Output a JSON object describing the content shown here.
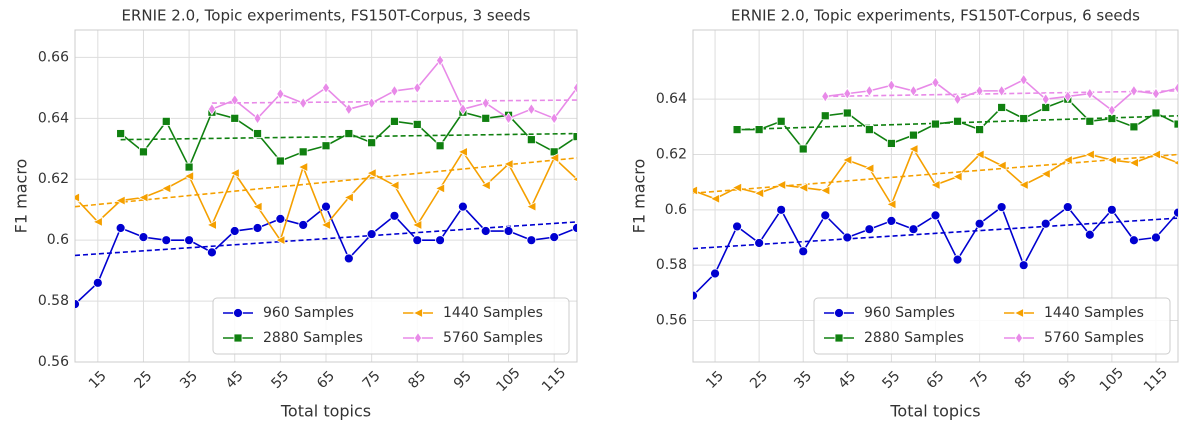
{
  "chart_data": [
    {
      "type": "line",
      "title": "ERNIE 2.0, Topic experiments, FS150T-Corpus, 3 seeds",
      "x_label": "Total topics",
      "y_label": "F1 macro",
      "xlim": [
        10,
        120
      ],
      "xticks": [
        15,
        25,
        35,
        45,
        55,
        65,
        75,
        85,
        95,
        105,
        115
      ],
      "ylim": [
        0.56,
        0.669
      ],
      "yticks": [
        0.56,
        0.58,
        0.6,
        0.62,
        0.64,
        0.66
      ],
      "grid": true,
      "legend": "lower right",
      "series": [
        {
          "name": "960 Samples",
          "color": "#0000d0",
          "marker": "circle",
          "x": [
            10,
            15,
            20,
            25,
            30,
            35,
            40,
            45,
            50,
            55,
            60,
            65,
            70,
            75,
            80,
            85,
            90,
            95,
            100,
            105,
            110,
            115,
            120
          ],
          "values": [
            0.579,
            0.586,
            0.604,
            0.601,
            0.6,
            0.6,
            0.596,
            0.603,
            0.604,
            0.607,
            0.605,
            0.611,
            0.594,
            0.602,
            0.608,
            0.6,
            0.6,
            0.611,
            0.603,
            0.603,
            0.6,
            0.601,
            0.604
          ],
          "trend": [
            0.595,
            0.606
          ]
        },
        {
          "name": "2880 Samples",
          "color": "#108010",
          "marker": "square",
          "x": [
            20,
            25,
            30,
            35,
            40,
            45,
            50,
            55,
            60,
            65,
            70,
            75,
            80,
            85,
            90,
            95,
            100,
            105,
            110,
            115,
            120
          ],
          "values": [
            0.635,
            0.629,
            0.639,
            0.624,
            0.642,
            0.64,
            0.635,
            0.626,
            0.629,
            0.631,
            0.635,
            0.632,
            0.639,
            0.638,
            0.631,
            0.642,
            0.64,
            0.641,
            0.633,
            0.629,
            0.634
          ],
          "trend": [
            0.633,
            0.635
          ]
        },
        {
          "name": "1440 Samples",
          "color": "#f5a000",
          "marker": "triangle-left",
          "x": [
            10,
            15,
            20,
            25,
            30,
            35,
            40,
            45,
            50,
            55,
            60,
            65,
            70,
            75,
            80,
            85,
            90,
            95,
            100,
            105,
            110,
            115,
            120
          ],
          "values": [
            0.614,
            0.606,
            0.613,
            0.614,
            0.617,
            0.621,
            0.605,
            0.622,
            0.611,
            0.6,
            0.624,
            0.605,
            0.614,
            0.622,
            0.618,
            0.605,
            0.617,
            0.629,
            0.618,
            0.625,
            0.611,
            0.627,
            0.62
          ],
          "trend": [
            0.611,
            0.627
          ]
        },
        {
          "name": "5760 Samples",
          "color": "#e88ae8",
          "marker": "diamond",
          "x": [
            40,
            45,
            50,
            55,
            60,
            65,
            70,
            75,
            80,
            85,
            90,
            95,
            100,
            105,
            110,
            115,
            120
          ],
          "values": [
            0.643,
            0.646,
            0.64,
            0.648,
            0.645,
            0.65,
            0.643,
            0.645,
            0.649,
            0.65,
            0.659,
            0.643,
            0.645,
            0.64,
            0.643,
            0.64,
            0.65
          ],
          "trend": [
            0.645,
            0.646
          ]
        }
      ]
    },
    {
      "type": "line",
      "title": "ERNIE 2.0, Topic experiments, FS150T-Corpus, 6 seeds",
      "x_label": "Total topics",
      "y_label": "F1 macro",
      "xlim": [
        10,
        120
      ],
      "xticks": [
        15,
        25,
        35,
        45,
        55,
        65,
        75,
        85,
        95,
        105,
        115
      ],
      "ylim": [
        0.545,
        0.665
      ],
      "yticks": [
        0.56,
        0.58,
        0.6,
        0.62,
        0.64
      ],
      "grid": true,
      "legend": "lower right",
      "series": [
        {
          "name": "960 Samples",
          "color": "#0000d0",
          "marker": "circle",
          "x": [
            10,
            15,
            20,
            25,
            30,
            35,
            40,
            45,
            50,
            55,
            60,
            65,
            70,
            75,
            80,
            85,
            90,
            95,
            100,
            105,
            110,
            115,
            120
          ],
          "values": [
            0.569,
            0.577,
            0.594,
            0.588,
            0.6,
            0.585,
            0.598,
            0.59,
            0.593,
            0.596,
            0.593,
            0.598,
            0.582,
            0.595,
            0.601,
            0.58,
            0.595,
            0.601,
            0.591,
            0.6,
            0.589,
            0.59,
            0.599
          ],
          "trend": [
            0.586,
            0.597
          ]
        },
        {
          "name": "2880 Samples",
          "color": "#108010",
          "marker": "square",
          "x": [
            20,
            25,
            30,
            35,
            40,
            45,
            50,
            55,
            60,
            65,
            70,
            75,
            80,
            85,
            90,
            95,
            100,
            105,
            110,
            115,
            120
          ],
          "values": [
            0.629,
            0.629,
            0.632,
            0.622,
            0.634,
            0.635,
            0.629,
            0.624,
            0.627,
            0.631,
            0.632,
            0.629,
            0.637,
            0.633,
            0.637,
            0.64,
            0.632,
            0.633,
            0.63,
            0.635,
            0.631
          ],
          "trend": [
            0.629,
            0.634
          ]
        },
        {
          "name": "1440 Samples",
          "color": "#f5a000",
          "marker": "triangle-left",
          "x": [
            10,
            15,
            20,
            25,
            30,
            35,
            40,
            45,
            50,
            55,
            60,
            65,
            70,
            75,
            80,
            85,
            90,
            95,
            100,
            105,
            110,
            115,
            120
          ],
          "values": [
            0.607,
            0.604,
            0.608,
            0.606,
            0.609,
            0.608,
            0.607,
            0.618,
            0.615,
            0.602,
            0.622,
            0.609,
            0.612,
            0.62,
            0.616,
            0.609,
            0.613,
            0.618,
            0.62,
            0.618,
            0.617,
            0.62,
            0.617
          ],
          "trend": [
            0.606,
            0.62
          ]
        },
        {
          "name": "5760 Samples",
          "color": "#e88ae8",
          "marker": "diamond",
          "x": [
            40,
            45,
            50,
            55,
            60,
            65,
            70,
            75,
            80,
            85,
            90,
            95,
            100,
            105,
            110,
            115,
            120
          ],
          "values": [
            0.641,
            0.642,
            0.643,
            0.645,
            0.643,
            0.646,
            0.64,
            0.643,
            0.643,
            0.647,
            0.64,
            0.641,
            0.642,
            0.636,
            0.643,
            0.642,
            0.644
          ],
          "trend": [
            0.641,
            0.643
          ]
        }
      ]
    }
  ]
}
